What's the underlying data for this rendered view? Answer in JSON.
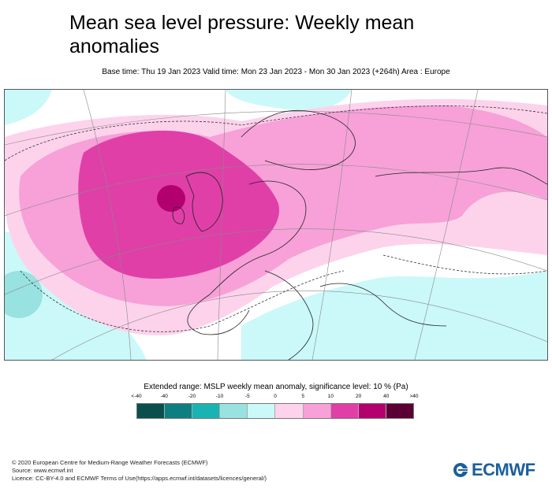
{
  "title": "Mean sea level pressure: Weekly mean anomalies",
  "subtitle": "Base time: Thu 19 Jan 2023 Valid time: Mon 23 Jan 2023 - Mon 30 Jan 2023 (+264h) Area : Europe",
  "legend": {
    "title": "Extended range: MSLP weekly mean anomaly, significance level: 10 % (Pa)",
    "ticks": [
      "<-40",
      "-40",
      "-20",
      "-10",
      "-5",
      "0",
      "5",
      "10",
      "20",
      "40",
      ">40"
    ],
    "colors": [
      "#0b4f4d",
      "#0e7f80",
      "#19b3b2",
      "#98e2e1",
      "#cbf8f8",
      "#fdd3ec",
      "#f7a1d8",
      "#e03fa8",
      "#b3006f",
      "#5b0035"
    ]
  },
  "footer": {
    "copyright": "© 2020 European Centre for Medium-Range Weather Forecasts (ECMWF)",
    "source": "Source: www.ecmwf.int",
    "licence": "Licence: CC-BY-4.0 and ECMWF Terms of Use(https://apps.ecmwf.int/datasets/licences/general/)"
  },
  "logo": {
    "text": "ECMWF",
    "color": "#1b5f9c"
  }
}
